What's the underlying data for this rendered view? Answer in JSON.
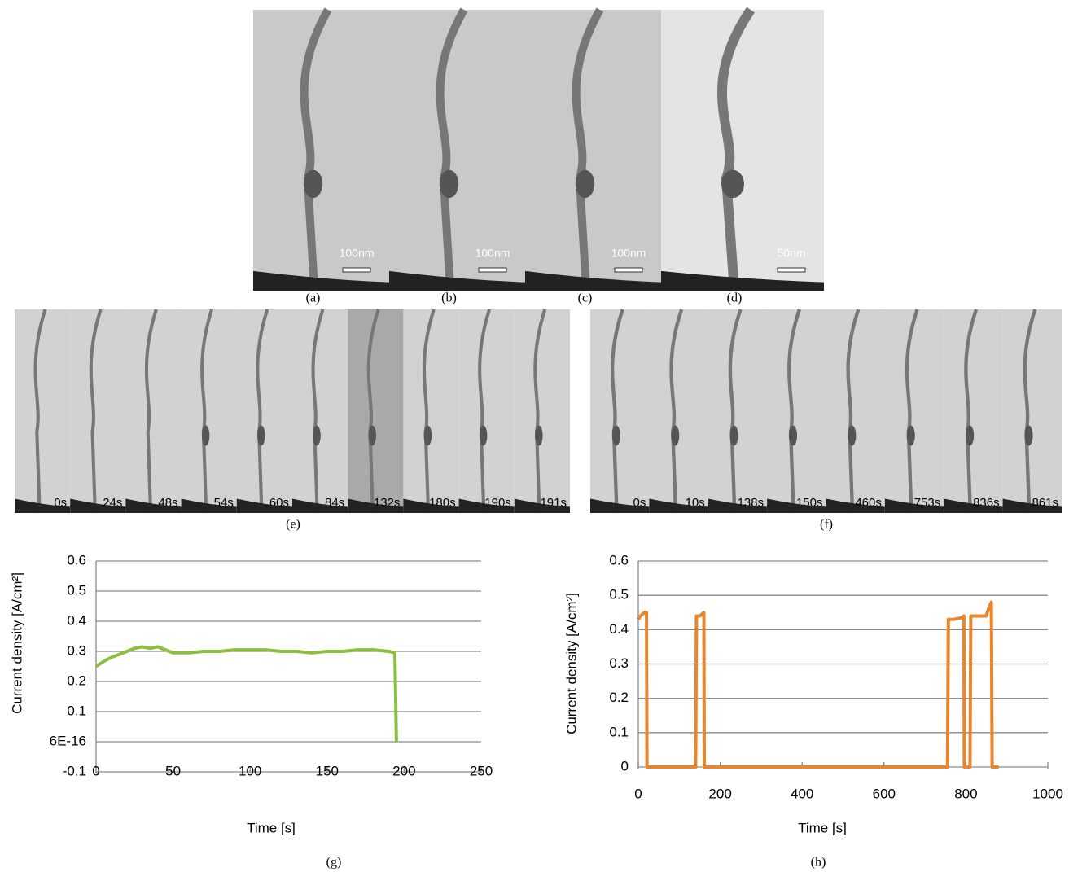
{
  "images": {
    "top": [
      {
        "caption": "(a)",
        "scale": "100nm"
      },
      {
        "caption": "(b)",
        "scale": "100nm"
      },
      {
        "caption": "(c)",
        "scale": "100nm"
      },
      {
        "caption": "(d)",
        "scale": "50nm"
      }
    ],
    "e": {
      "caption": "(e)",
      "frames": [
        "0s",
        "24s",
        "48s",
        "54s",
        "60s",
        "84s",
        "132s",
        "180s",
        "190s",
        "191s"
      ]
    },
    "f": {
      "caption": "(f)",
      "frames": [
        "0s",
        "10s",
        "138s",
        "150s",
        "460s",
        "753s",
        "836s",
        "861s"
      ]
    }
  },
  "chart_data": [
    {
      "type": "line",
      "caption": "(g)",
      "xlabel": "Time [s]",
      "ylabel": "Current density [A/cm²]",
      "color": "#8cbf3f",
      "grid": true,
      "xlim": [
        0,
        250
      ],
      "xticks": [
        0,
        50,
        100,
        150,
        200,
        250
      ],
      "ylim": [
        -0.1,
        0.6
      ],
      "yticks": [
        -0.1,
        {
          "value": 6e-16,
          "label": "6E-16"
        },
        0.1,
        0.2,
        0.3,
        0.4,
        0.5,
        0.6
      ],
      "x": [
        0,
        3,
        6,
        10,
        15,
        20,
        25,
        30,
        35,
        40,
        45,
        50,
        60,
        70,
        80,
        90,
        100,
        110,
        120,
        130,
        140,
        150,
        160,
        170,
        180,
        190,
        194,
        195
      ],
      "values": [
        0.25,
        0.26,
        0.27,
        0.28,
        0.29,
        0.3,
        0.31,
        0.315,
        0.31,
        0.315,
        0.305,
        0.295,
        0.295,
        0.3,
        0.3,
        0.305,
        0.305,
        0.305,
        0.3,
        0.3,
        0.295,
        0.3,
        0.3,
        0.305,
        0.305,
        0.3,
        0.295,
        0
      ]
    },
    {
      "type": "line",
      "caption": "(h)",
      "xlabel": "Time [s]",
      "ylabel": "Current density [A/cm²]",
      "color": "#e8862e",
      "grid": true,
      "xlim": [
        0,
        1000
      ],
      "xticks": [
        0,
        200,
        400,
        600,
        800,
        1000
      ],
      "ylim": [
        0,
        0.6
      ],
      "yticks": [
        0,
        0.1,
        0.2,
        0.3,
        0.4,
        0.5,
        0.6
      ],
      "x": [
        0,
        5,
        15,
        20,
        21,
        140,
        142,
        150,
        160,
        161,
        755,
        757,
        770,
        790,
        795,
        796,
        810,
        812,
        830,
        850,
        852,
        858,
        862,
        864,
        880
      ],
      "values": [
        0.43,
        0.44,
        0.45,
        0.45,
        0,
        0,
        0.44,
        0.44,
        0.45,
        0,
        0,
        0.43,
        0.43,
        0.435,
        0.44,
        0,
        0,
        0.44,
        0.44,
        0.44,
        0.45,
        0.47,
        0.48,
        0,
        0
      ]
    }
  ]
}
